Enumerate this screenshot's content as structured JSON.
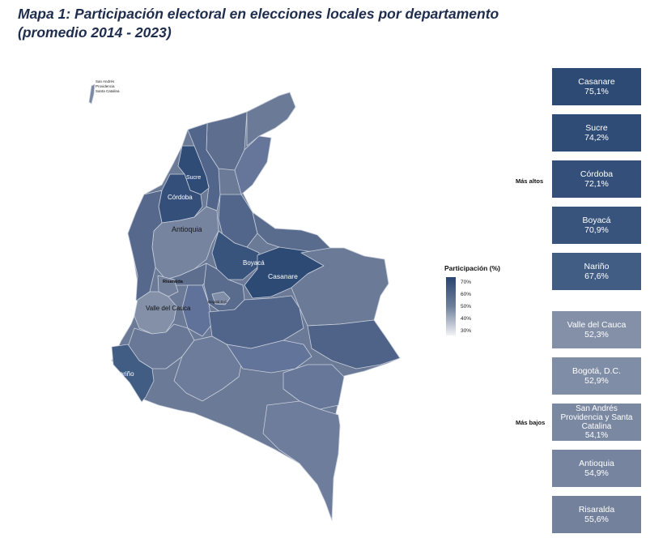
{
  "title": {
    "line1": "Mapa 1: Participación electoral en elecciones locales por departamento",
    "line2": "(promedio 2014 - 2023)"
  },
  "map_labels": {
    "san_andres": [
      "San Andrés",
      "Providencia",
      "Santa Catalina"
    ],
    "sucre": "Sucre",
    "cordoba": "Córdoba",
    "antioquia": "Antioquia",
    "boyaca": "Boyacá",
    "casanare": "Casanare",
    "risaralda": "Risaralda",
    "valle": "Valle del Cauca",
    "bogota": "Bogotá D.C.",
    "narino": "Nariño"
  },
  "legend": {
    "title": "Participación (%)",
    "ticks": [
      "70%",
      "60%",
      "50%",
      "40%",
      "30%"
    ]
  },
  "groups": {
    "high_label": "Más altos",
    "low_label": "Más bajos"
  },
  "highest": [
    {
      "name": "Casanare",
      "value": "75,1%",
      "color": "#2c4a74"
    },
    {
      "name": "Sucre",
      "value": "74,2%",
      "color": "#2f4c76"
    },
    {
      "name": "Córdoba",
      "value": "72,1%",
      "color": "#34507a"
    },
    {
      "name": "Boyacá",
      "value": "70,9%",
      "color": "#38547d"
    },
    {
      "name": "Nariño",
      "value": "67,6%",
      "color": "#425d84"
    }
  ],
  "lowest": [
    {
      "name": "Valle del Cauca",
      "value": "52,3%",
      "color": "#8390a8"
    },
    {
      "name": "Bogotá, D.C.",
      "value": "52,9%",
      "color": "#808da6"
    },
    {
      "name": "San Andrés Providencia y Santa Catalina",
      "value": "54,1%",
      "color": "#7a88a2"
    },
    {
      "name": "Antioquia",
      "value": "54,9%",
      "color": "#76849f"
    },
    {
      "name": "Risaralda",
      "value": "55,6%",
      "color": "#73819c"
    }
  ]
}
